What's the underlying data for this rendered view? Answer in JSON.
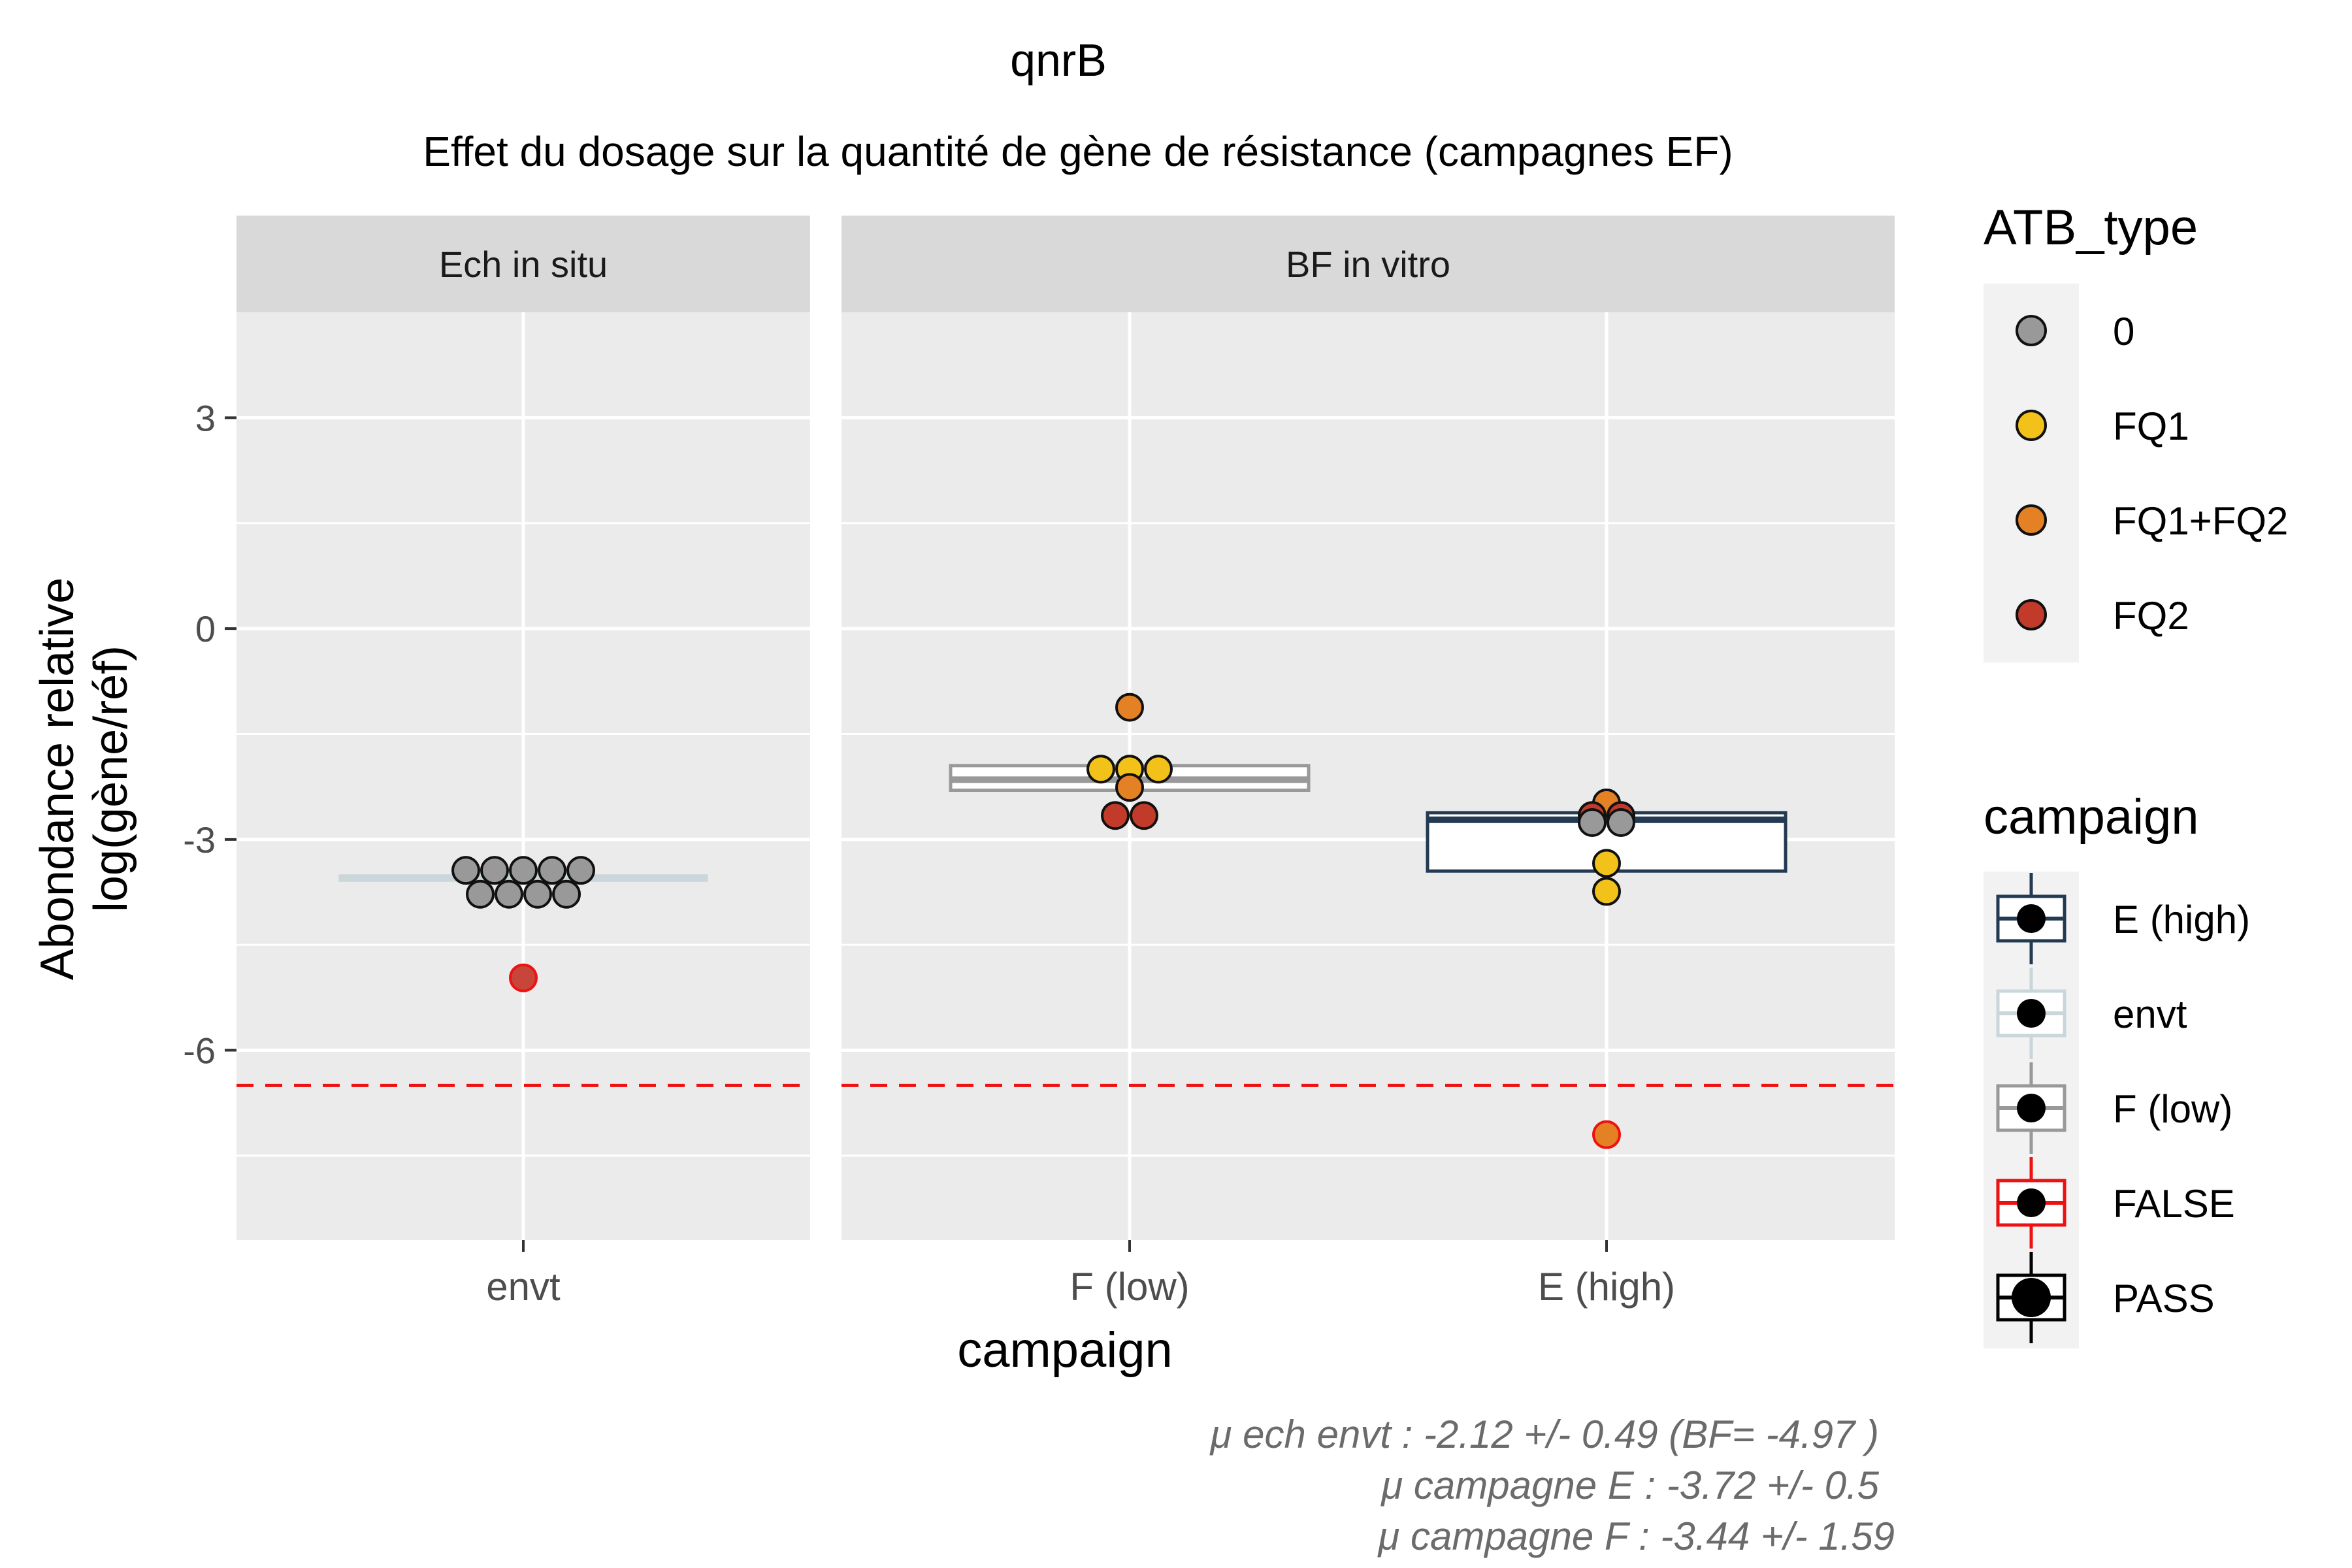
{
  "chart_data": {
    "type": "boxplot",
    "title": "qnrB",
    "subtitle": "Effet du dosage sur la quantité de gène de résistance (campagnes EF)",
    "xlabel": "campaign",
    "ylabel_line1": "Abondance relative",
    "ylabel_line2": "log(gène/réf)",
    "ylim": [
      -8.7,
      4.5
    ],
    "y_ticks": [
      {
        "value": 3,
        "label": "3"
      },
      {
        "value": 0,
        "label": "0"
      },
      {
        "value": -3,
        "label": "-3"
      },
      {
        "value": -6,
        "label": "-6"
      }
    ],
    "y_minor": [
      1.5,
      -1.5,
      -4.5,
      -7.5
    ],
    "threshold": -6.5,
    "threshold_color": "#EE1111",
    "panels": [
      {
        "strip_label": "Ech in situ",
        "categories": [
          "envt"
        ],
        "boxes": [
          {
            "category": "envt",
            "q1": -3.58,
            "median": -3.55,
            "q3": -3.52,
            "color": "#C9D6DA",
            "fill": "#C9D6DA"
          }
        ],
        "points": [
          {
            "category": "envt",
            "y": -3.44,
            "fill": "#999999",
            "stroke": "#111111"
          },
          {
            "category": "envt",
            "y": -3.44,
            "fill": "#999999",
            "stroke": "#111111"
          },
          {
            "category": "envt",
            "y": -3.44,
            "fill": "#999999",
            "stroke": "#111111"
          },
          {
            "category": "envt",
            "y": -3.44,
            "fill": "#999999",
            "stroke": "#111111"
          },
          {
            "category": "envt",
            "y": -3.44,
            "fill": "#999999",
            "stroke": "#111111"
          },
          {
            "category": "envt",
            "y": -3.78,
            "fill": "#999999",
            "stroke": "#111111"
          },
          {
            "category": "envt",
            "y": -3.78,
            "fill": "#999999",
            "stroke": "#111111"
          },
          {
            "category": "envt",
            "y": -3.78,
            "fill": "#999999",
            "stroke": "#111111"
          },
          {
            "category": "envt",
            "y": -3.78,
            "fill": "#999999",
            "stroke": "#111111"
          },
          {
            "category": "envt",
            "y": -4.97,
            "fill": "#C8453A",
            "stroke": "#EE1111"
          }
        ]
      },
      {
        "strip_label": "BF in vitro",
        "categories": [
          "F (low)",
          "E (high)"
        ],
        "boxes": [
          {
            "category": "F (low)",
            "q1": -2.3,
            "median": -2.15,
            "q3": -1.95,
            "color": "#999999",
            "fill": "#FFFFFF"
          },
          {
            "category": "E (high)",
            "q1": -3.45,
            "median": -2.72,
            "q3": -2.62,
            "color": "#233A52",
            "fill": "#FFFFFF"
          }
        ],
        "points": [
          {
            "category": "F (low)",
            "y": -1.12,
            "fill": "#E58125",
            "stroke": "#111111"
          },
          {
            "category": "F (low)",
            "y": -2.0,
            "fill": "#F3C21A",
            "stroke": "#111111"
          },
          {
            "category": "F (low)",
            "y": -2.0,
            "fill": "#F3C21A",
            "stroke": "#111111"
          },
          {
            "category": "F (low)",
            "y": -2.0,
            "fill": "#F3C21A",
            "stroke": "#111111"
          },
          {
            "category": "F (low)",
            "y": -2.26,
            "fill": "#E58125",
            "stroke": "#111111"
          },
          {
            "category": "F (low)",
            "y": -2.66,
            "fill": "#C23B2A",
            "stroke": "#111111"
          },
          {
            "category": "F (low)",
            "y": -2.66,
            "fill": "#C23B2A",
            "stroke": "#111111"
          },
          {
            "category": "E (high)",
            "y": -2.48,
            "fill": "#E58125",
            "stroke": "#111111"
          },
          {
            "category": "E (high)",
            "y": -2.66,
            "fill": "#C23B2A",
            "stroke": "#111111"
          },
          {
            "category": "E (high)",
            "y": -2.66,
            "fill": "#C23B2A",
            "stroke": "#111111"
          },
          {
            "category": "E (high)",
            "y": -2.76,
            "fill": "#999999",
            "stroke": "#111111"
          },
          {
            "category": "E (high)",
            "y": -2.76,
            "fill": "#999999",
            "stroke": "#111111"
          },
          {
            "category": "E (high)",
            "y": -3.34,
            "fill": "#F3C21A",
            "stroke": "#111111"
          },
          {
            "category": "E (high)",
            "y": -3.74,
            "fill": "#F3C21A",
            "stroke": "#111111"
          },
          {
            "category": "E (high)",
            "y": -7.2,
            "fill": "#E58125",
            "stroke": "#EE1111"
          }
        ]
      }
    ],
    "legend_fill": {
      "title": "ATB_type",
      "entries": [
        {
          "label": "0",
          "color": "#999999"
        },
        {
          "label": "FQ1",
          "color": "#F3C21A"
        },
        {
          "label": "FQ1+FQ2",
          "color": "#E58125"
        },
        {
          "label": "FQ2",
          "color": "#C23B2A"
        }
      ]
    },
    "legend_campaign": {
      "title": "campaign",
      "entries": [
        {
          "label": "E (high)",
          "color": "#233A52"
        },
        {
          "label": "envt",
          "color": "#C9D6DA"
        },
        {
          "label": "F (low)",
          "color": "#999999"
        },
        {
          "label": "FALSE",
          "color": "#EE1111"
        },
        {
          "label": "PASS",
          "color": "#000000"
        }
      ]
    },
    "caption": [
      "μ ech envt :  -2.12 +/- 0.49  (BF= -4.97 )",
      "μ campagne E :  -3.72 +/- 0.5",
      "μ campagne F :  -3.44 +/- 1.59"
    ]
  }
}
